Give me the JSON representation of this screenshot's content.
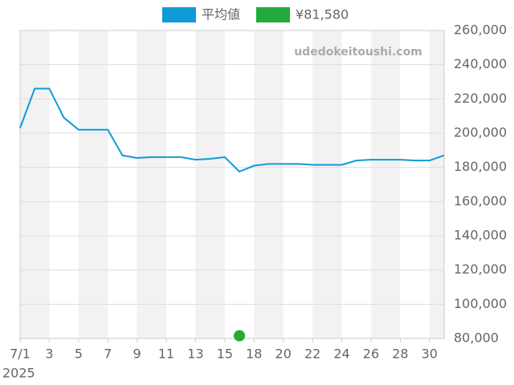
{
  "chart_data": {
    "type": "line",
    "watermark": "udedokeitoushi.com",
    "year_label": "2025",
    "categories": [
      "7/1",
      null,
      "3",
      null,
      "5",
      null,
      "7",
      null,
      "9",
      null,
      "11",
      null,
      "13",
      null,
      "15",
      null,
      "18",
      null,
      "20",
      null,
      "22",
      null,
      "24",
      null,
      "26",
      null,
      "28",
      null,
      "30",
      null
    ],
    "series": [
      {
        "name": "平均値",
        "color": "#0f9ad8",
        "values": [
          203000,
          226000,
          226000,
          209000,
          202000,
          202000,
          202000,
          187000,
          185500,
          186000,
          186000,
          186000,
          184500,
          185000,
          186000,
          177500,
          181000,
          182000,
          182000,
          182000,
          181500,
          181500,
          181500,
          184000,
          184500,
          184500,
          184500,
          184000,
          184000,
          187000
        ]
      },
      {
        "name": "¥81,580",
        "color": "#22aa3a",
        "values": [
          null,
          null,
          null,
          null,
          null,
          null,
          null,
          null,
          null,
          null,
          null,
          null,
          null,
          null,
          null,
          81580,
          null,
          null,
          null,
          null,
          null,
          null,
          null,
          null,
          null,
          null,
          null,
          null,
          null,
          null
        ]
      }
    ],
    "ylim": [
      80000,
      260000
    ],
    "yticks": [
      {
        "value": 80000,
        "label": "80,000"
      },
      {
        "value": 100000,
        "label": "100,000"
      },
      {
        "value": 120000,
        "label": "120,000"
      },
      {
        "value": 140000,
        "label": "140,000"
      },
      {
        "value": 160000,
        "label": "160,000"
      },
      {
        "value": 180000,
        "label": "180,000"
      },
      {
        "value": 200000,
        "label": "200,000"
      },
      {
        "value": 220000,
        "label": "220,000"
      },
      {
        "value": 240000,
        "label": "240,000"
      },
      {
        "value": 260000,
        "label": "260,000"
      }
    ],
    "grid": true
  }
}
